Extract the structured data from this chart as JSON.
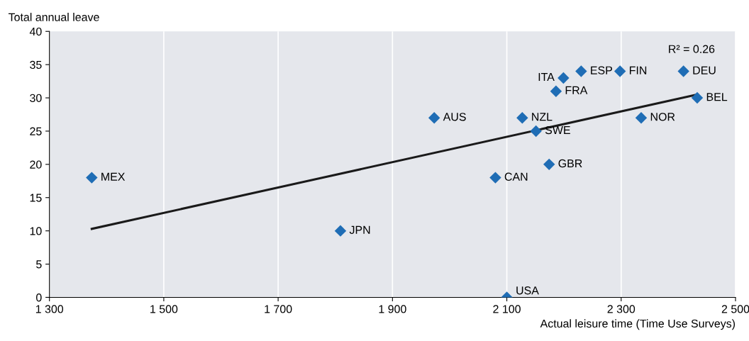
{
  "chart_data": {
    "type": "scatter",
    "xlabel": "Actual leisure time (Time Use Surveys)",
    "ylabel": "Total annual leave",
    "series": [
      {
        "color": "#1f6db5",
        "x": [
          1374,
          1809,
          1973,
          2080,
          2100,
          2127,
          2151,
          2199,
          2186,
          2230,
          2174,
          2298,
          2335,
          2409,
          2433
        ],
        "values": [
          18,
          10,
          27,
          18,
          0,
          27,
          25,
          33,
          31,
          34,
          20,
          34,
          27,
          34,
          30
        ],
        "marker": "diamond"
      },
      {
        "type": "line",
        "color": "#1a1a1a",
        "x": [
          1374,
          2433
        ],
        "values": [
          10.3,
          30.5
        ],
        "marker": "none"
      }
    ],
    "annotations": [
      {
        "text": "MEX",
        "x": 1374,
        "y": 18
      },
      {
        "text": "JPN",
        "x": 1809,
        "y": 10
      },
      {
        "text": "AUS",
        "x": 1973,
        "y": 27
      },
      {
        "text": "CAN",
        "x": 2080,
        "y": 18
      },
      {
        "text": "USA",
        "x": 2100,
        "y": 0
      },
      {
        "text": "NZL",
        "x": 2127,
        "y": 27
      },
      {
        "text": "SWE",
        "x": 2151,
        "y": 25
      },
      {
        "text": "ITA",
        "x": 2199,
        "y": 33
      },
      {
        "text": "FRA",
        "x": 2186,
        "y": 31
      },
      {
        "text": "ESP",
        "x": 2230,
        "y": 34
      },
      {
        "text": "GBR",
        "x": 2174,
        "y": 20
      },
      {
        "text": "FIN",
        "x": 2298,
        "y": 34
      },
      {
        "text": "NOR",
        "x": 2335,
        "y": 27
      },
      {
        "text": "DEU",
        "x": 2409,
        "y": 34
      },
      {
        "text": "BEL",
        "x": 2433,
        "y": 30
      },
      "R² = 0.26"
    ],
    "xlim": [
      1300,
      2500
    ],
    "ylim": [
      0,
      40
    ],
    "xticks": [
      {
        "value": 1300,
        "label": "1 300"
      },
      {
        "value": 1500,
        "label": "1 500"
      },
      {
        "value": 1700,
        "label": "1 700"
      },
      {
        "value": 1900,
        "label": "1 900"
      },
      {
        "value": 2100,
        "label": "2 100"
      },
      {
        "value": 2300,
        "label": "2 300"
      },
      {
        "value": 2500,
        "label": "2 500"
      }
    ],
    "yticks": [
      0,
      5,
      10,
      15,
      20,
      25,
      30,
      35,
      40
    ],
    "grid": "x",
    "legend": false
  }
}
